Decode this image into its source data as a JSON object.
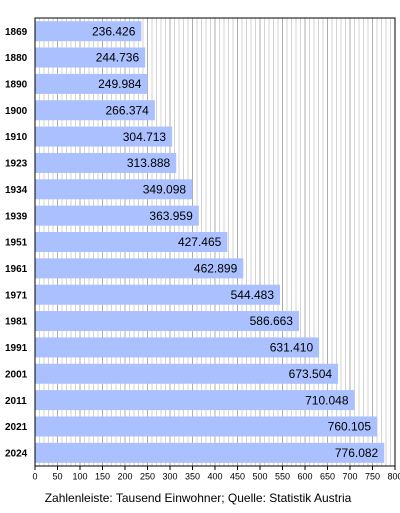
{
  "chart_data": {
    "type": "hbar",
    "caption": "Zahlenleiste: Tausend Einwohner; Quelle: Statistik Austria",
    "categories": [
      "1869",
      "1880",
      "1890",
      "1900",
      "1910",
      "1923",
      "1934",
      "1939",
      "1951",
      "1961",
      "1971",
      "1981",
      "1991",
      "2001",
      "2011",
      "2021",
      "2024"
    ],
    "values": [
      236.426,
      244.736,
      249.984,
      266.374,
      304.713,
      313.888,
      349.098,
      363.959,
      427.465,
      462.899,
      544.483,
      586.663,
      631.41,
      673.504,
      710.048,
      760.105,
      776.082
    ],
    "value_labels": [
      "236.426",
      "244.736",
      "249.984",
      "266.374",
      "304.713",
      "313.888",
      "349.098",
      "363.959",
      "427.465",
      "462.899",
      "544.483",
      "586.663",
      "631.410",
      "673.504",
      "710.048",
      "760.105",
      "776.082"
    ],
    "color": "#aac0ff",
    "xlim": [
      0,
      800
    ],
    "xticks": [
      0,
      50,
      100,
      150,
      200,
      250,
      300,
      350,
      400,
      450,
      500,
      550,
      600,
      650,
      700,
      750,
      800
    ],
    "grid": true
  }
}
